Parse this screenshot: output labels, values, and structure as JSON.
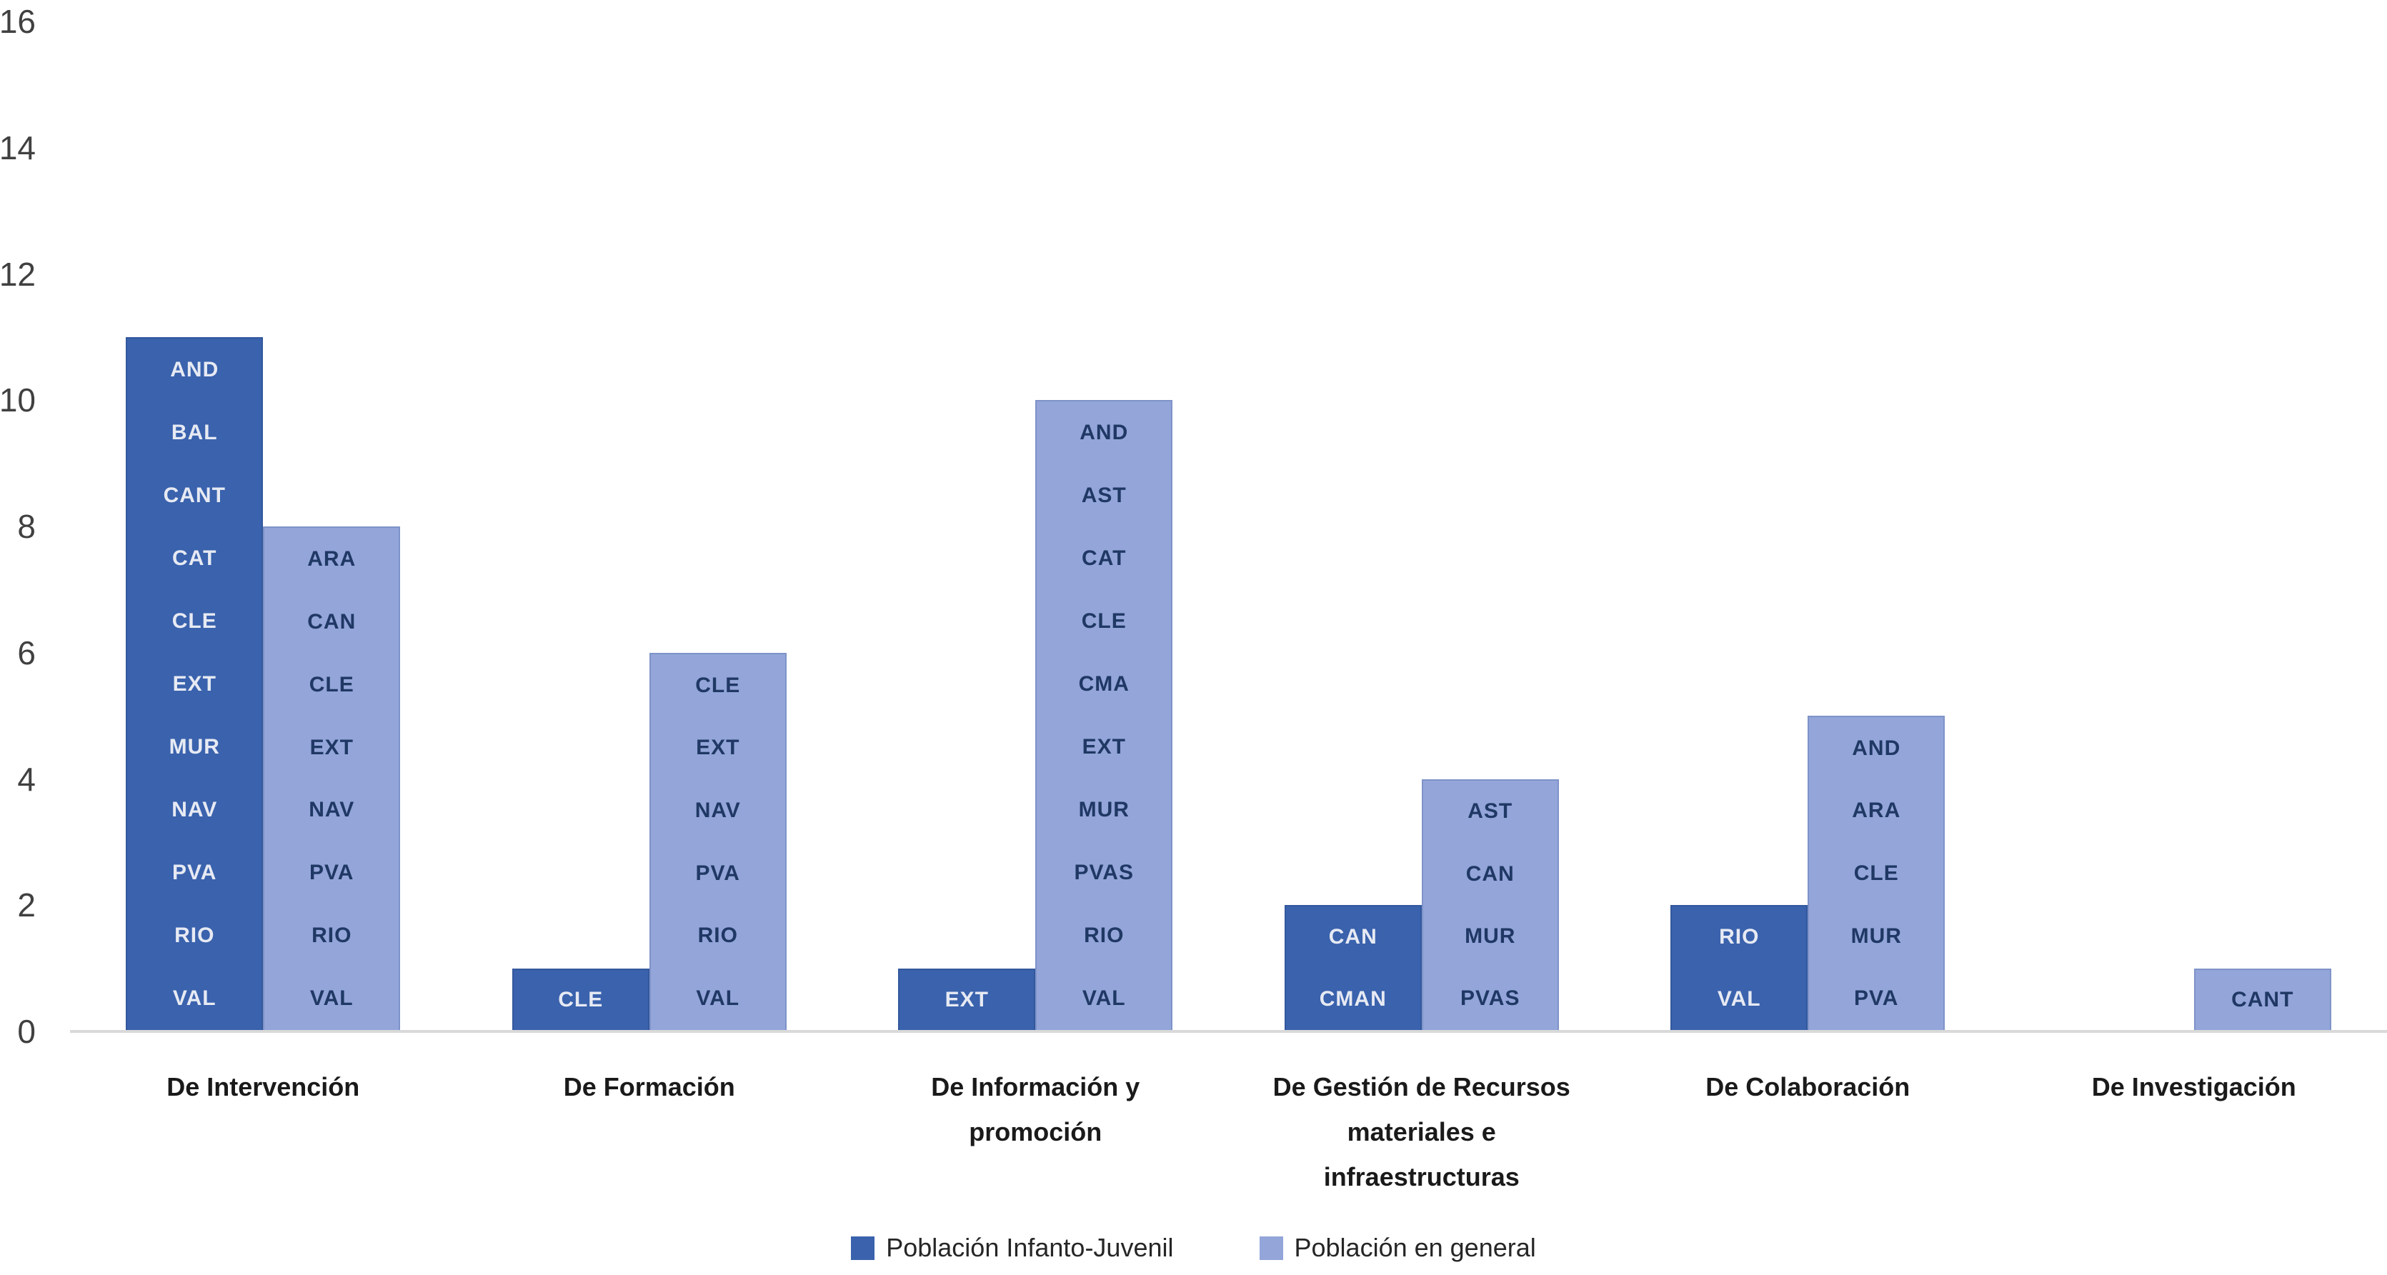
{
  "colors": {
    "background": "#FFFFFF",
    "axis_text": "#404040",
    "axis_line": "#D9D9D9",
    "category_text": "#1A1A1A",
    "legend_text": "#262626",
    "series_dark_fill": "#3A62AD",
    "series_dark_border": "#33589D",
    "series_dark_label": "#E7EAF3",
    "series_light_fill": "#93A5D9",
    "series_light_border": "#7E93C8",
    "series_light_label": "#1F3864"
  },
  "chart_data": {
    "type": "bar",
    "title": "",
    "xlabel": "",
    "ylabel": "",
    "ylim": [
      0,
      16
    ],
    "yticks": [
      0,
      2,
      4,
      6,
      8,
      10,
      12,
      14,
      16
    ],
    "grid": false,
    "legend_position": "bottom",
    "categories": [
      "De Intervención",
      "De Formación",
      "De Información y promoción",
      "De Gestión de Recursos materiales e infraestructuras",
      "De Colaboración",
      "De Investigación"
    ],
    "series": [
      {
        "name": "Población Infanto-Juvenil",
        "color_key": "dark",
        "values": [
          11,
          1,
          1,
          2,
          2,
          0
        ],
        "bar_labels": [
          [
            "AND",
            "BAL",
            "CANT",
            "CAT",
            "CLE",
            "EXT",
            "MUR",
            "NAV",
            "PVA",
            "RIO",
            "VAL"
          ],
          [
            "CLE"
          ],
          [
            "EXT"
          ],
          [
            "CAN",
            "CMAN"
          ],
          [
            "RIO",
            "VAL"
          ],
          []
        ]
      },
      {
        "name": "Población en general",
        "color_key": "light",
        "values": [
          8,
          6,
          10,
          4,
          5,
          1
        ],
        "bar_labels": [
          [
            "ARA",
            "CAN",
            "CLE",
            "EXT",
            "NAV",
            "PVA",
            "RIO",
            "VAL"
          ],
          [
            "CLE",
            "EXT",
            "NAV",
            "PVA",
            "RIO",
            "VAL"
          ],
          [
            "AND",
            "AST",
            "CAT",
            "CLE",
            "CMA",
            "EXT",
            "MUR",
            "PVAS",
            "RIO",
            "VAL"
          ],
          [
            "AST",
            "CAN",
            "MUR",
            "PVAS"
          ],
          [
            "AND",
            "ARA",
            "CLE",
            "MUR",
            "PVA"
          ],
          [
            "CANT"
          ]
        ]
      }
    ]
  }
}
